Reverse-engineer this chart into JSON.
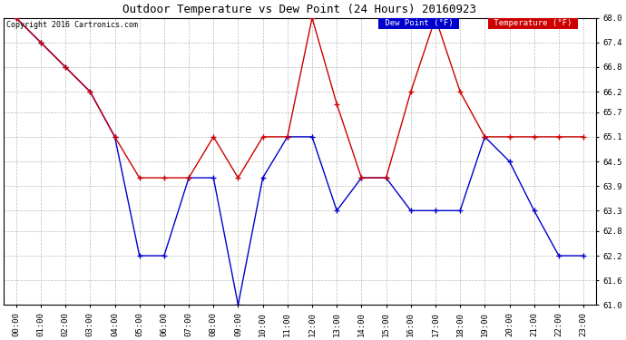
{
  "title": "Outdoor Temperature vs Dew Point (24 Hours) 20160923",
  "copyright": "Copyright 2016 Cartronics.com",
  "background_color": "#ffffff",
  "plot_background": "#ffffff",
  "grid_color": "#aaaaaa",
  "x_labels": [
    "00:00",
    "01:00",
    "02:00",
    "03:00",
    "04:00",
    "05:00",
    "06:00",
    "07:00",
    "08:00",
    "09:00",
    "10:00",
    "11:00",
    "12:00",
    "13:00",
    "14:00",
    "15:00",
    "16:00",
    "17:00",
    "18:00",
    "19:00",
    "20:00",
    "21:00",
    "22:00",
    "23:00"
  ],
  "ylim": [
    61.0,
    68.0
  ],
  "yticks": [
    61.0,
    61.6,
    62.2,
    62.8,
    63.3,
    63.9,
    64.5,
    65.1,
    65.7,
    66.2,
    66.8,
    67.4,
    68.0
  ],
  "temperature_color": "#cc0000",
  "dewpoint_color": "#0000cc",
  "temperature_values": [
    68.0,
    67.4,
    66.8,
    66.2,
    65.1,
    64.1,
    64.1,
    64.1,
    65.1,
    64.1,
    65.1,
    65.1,
    68.0,
    65.9,
    64.1,
    64.1,
    66.2,
    68.0,
    66.2,
    65.1,
    65.1,
    65.1,
    65.1,
    65.1
  ],
  "dewpoint_values": [
    68.0,
    67.4,
    66.8,
    66.2,
    65.1,
    62.2,
    62.2,
    64.1,
    64.1,
    61.0,
    64.1,
    65.1,
    65.1,
    63.3,
    64.1,
    64.1,
    63.3,
    63.3,
    63.3,
    65.1,
    64.5,
    63.3,
    62.2,
    62.2
  ],
  "legend_dewpoint_bg": "#0000cc",
  "legend_temp_bg": "#cc0000",
  "legend_text_color": "#ffffff",
  "figwidth": 6.9,
  "figheight": 3.75,
  "dpi": 100
}
